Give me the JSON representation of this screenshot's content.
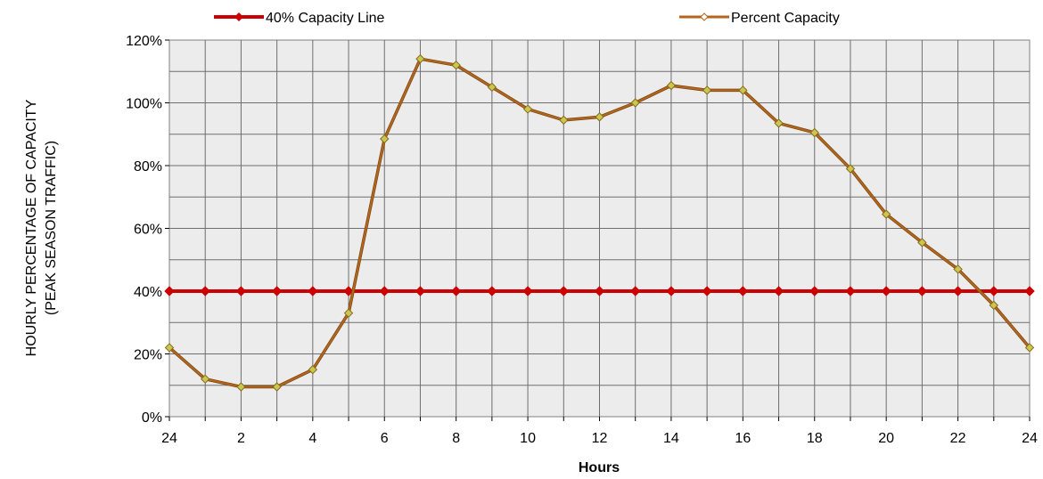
{
  "chart_data": {
    "type": "line",
    "xlabel": "Hours",
    "ylabel_lines": [
      "HOURLY  PERCENTAGE  OF  CAPACITY",
      "(PEAK  SEASON  TRAFFIC)"
    ],
    "x": [
      24,
      1,
      2,
      3,
      4,
      5,
      6,
      7,
      8,
      9,
      10,
      11,
      12,
      13,
      14,
      15,
      16,
      17,
      18,
      19,
      20,
      21,
      22,
      23,
      24
    ],
    "x_tick_labels": [
      "24",
      "",
      "2",
      "",
      "4",
      "",
      "6",
      "",
      "8",
      "",
      "10",
      "",
      "12",
      "",
      "14",
      "",
      "16",
      "",
      "18",
      "",
      "20",
      "",
      "22",
      "",
      "24"
    ],
    "y_tick_labels": [
      "0%",
      "20%",
      "40%",
      "60%",
      "80%",
      "100%",
      "120%"
    ],
    "ylim": [
      0,
      120
    ],
    "grid": true,
    "legend_position": "top",
    "series": [
      {
        "name": "40% Capacity Line",
        "color": "#cc0000",
        "marker": "diamond-filled",
        "values": [
          40,
          40,
          40,
          40,
          40,
          40,
          40,
          40,
          40,
          40,
          40,
          40,
          40,
          40,
          40,
          40,
          40,
          40,
          40,
          40,
          40,
          40,
          40,
          40,
          40
        ]
      },
      {
        "name": "Percent Capacity",
        "color": "#b5651d",
        "marker": "diamond-open",
        "marker_fill": "#c8c850",
        "values": [
          22,
          12,
          9.5,
          9.5,
          15,
          33,
          88.5,
          114,
          112,
          105,
          98,
          94.5,
          95.5,
          100,
          105.5,
          104,
          104,
          93.5,
          90.5,
          79,
          64.5,
          55.5,
          47,
          35.5,
          22
        ]
      }
    ]
  }
}
